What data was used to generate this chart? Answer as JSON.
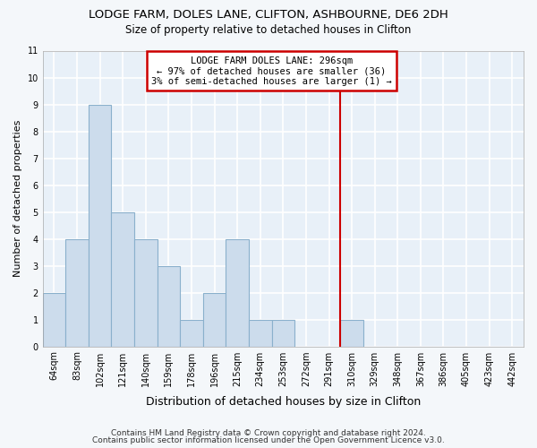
{
  "title1": "LODGE FARM, DOLES LANE, CLIFTON, ASHBOURNE, DE6 2DH",
  "title2": "Size of property relative to detached houses in Clifton",
  "xlabel": "Distribution of detached houses by size in Clifton",
  "ylabel": "Number of detached properties",
  "bin_labels": [
    "64sqm",
    "83sqm",
    "102sqm",
    "121sqm",
    "140sqm",
    "159sqm",
    "178sqm",
    "196sqm",
    "215sqm",
    "234sqm",
    "253sqm",
    "272sqm",
    "291sqm",
    "310sqm",
    "329sqm",
    "348sqm",
    "367sqm",
    "386sqm",
    "405sqm",
    "423sqm",
    "442sqm"
  ],
  "bin_values": [
    2,
    4,
    9,
    5,
    4,
    3,
    1,
    2,
    4,
    1,
    1,
    0,
    0,
    1,
    0,
    0,
    0,
    0,
    0,
    0,
    0
  ],
  "bar_color": "#ccdcec",
  "bar_edge_color": "#8ab0cc",
  "reference_line_x": 12.5,
  "annotation_title": "LODGE FARM DOLES LANE: 296sqm",
  "annotation_line1": "← 97% of detached houses are smaller (36)",
  "annotation_line2": "3% of semi-detached houses are larger (1) →",
  "annotation_box_facecolor": "#ffffff",
  "annotation_box_edgecolor": "#cc0000",
  "reference_line_color": "#cc0000",
  "ylim": [
    0,
    11
  ],
  "yticks": [
    0,
    1,
    2,
    3,
    4,
    5,
    6,
    7,
    8,
    9,
    10,
    11
  ],
  "footer1": "Contains HM Land Registry data © Crown copyright and database right 2024.",
  "footer2": "Contains public sector information licensed under the Open Government Licence v3.0.",
  "plot_bg_color": "#e8f0f8",
  "fig_bg_color": "#f4f7fa",
  "grid_color": "#ffffff",
  "title1_fontsize": 9.5,
  "title2_fontsize": 8.5,
  "xlabel_fontsize": 9,
  "ylabel_fontsize": 8,
  "tick_fontsize": 7,
  "annotation_fontsize": 7.5,
  "footer_fontsize": 6.5
}
